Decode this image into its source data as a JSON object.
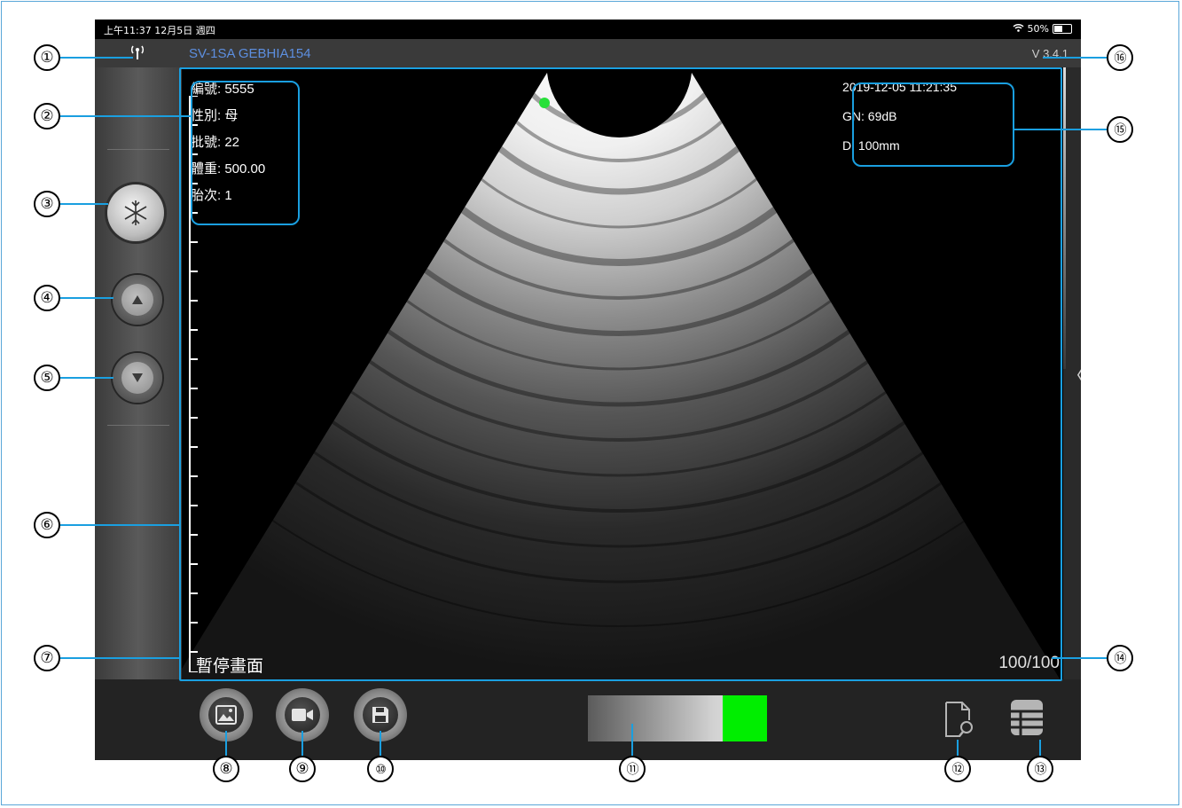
{
  "status_bar": {
    "time_date": "上午11:37  12月5日 週四",
    "battery_pct": "50%"
  },
  "header": {
    "device_name": "SV-1SA GEBHIA154",
    "version": "V 3.4.1",
    "antenna_icon": "antenna-icon"
  },
  "left_panel": {
    "freeze_icon": "snowflake-icon",
    "up_icon": "triangle-up-icon",
    "down_icon": "triangle-down-icon"
  },
  "patient_info": [
    "編號: 5555",
    "性別: 母",
    "批號: 22",
    "體重: 500.00",
    "胎次: 1"
  ],
  "scan_info": [
    "2019-12-05 11:21:35",
    "GN: 69dB",
    "D: 100mm"
  ],
  "status": {
    "paused_text": "暫停畫面",
    "frame_count": "100/100"
  },
  "bottom_toolbar": {
    "icons": [
      "image-icon",
      "video-icon",
      "save-icon",
      "file-search-icon",
      "table-icon"
    ]
  },
  "gain_bar": {
    "colors": [
      "#5b5b5b",
      "#e6e6e6",
      "#00ee00"
    ]
  },
  "annotations": [
    "①",
    "②",
    "③",
    "④",
    "⑤",
    "⑥",
    "⑦",
    "⑧",
    "⑨",
    "⑩",
    "⑪",
    "⑫",
    "⑬",
    "⑭",
    "⑮",
    "⑯"
  ],
  "colors": {
    "highlight": "#1a9fe0",
    "accent_green": "#00ee00",
    "device_name": "#5d8fe0"
  }
}
